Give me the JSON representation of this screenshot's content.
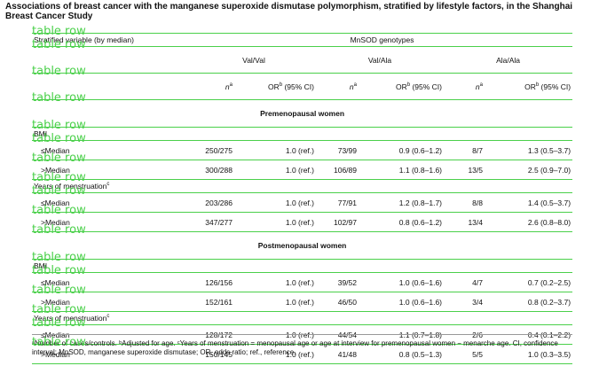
{
  "caption": "Associations of breast cancer with the manganese superoxide dismutase polymorphism, stratified by lifestyle factors, in the Shanghai Breast Cancer Study",
  "watermark": "table row",
  "header": {
    "stratified": "Stratified variable (by median)",
    "genotypes": "MnSOD genotypes",
    "groups": [
      "Val/Val",
      "Val/Ala",
      "Ala/Ala"
    ],
    "n_label": "n",
    "n_sup": "a",
    "or_label": "OR",
    "or_sup": "b",
    "ci_label": " (95% CI)"
  },
  "sections": [
    {
      "title": "Premenopausal women",
      "variables": [
        {
          "label": "BMI",
          "sup": "",
          "rows": [
            {
              "label": "≤Median",
              "cells": [
                "250/275",
                "1.0 (ref.)",
                "73/99",
                "0.9 (0.6–1.2)",
                "8/7",
                "1.3 (0.5–3.7)"
              ]
            },
            {
              "label": ">Median",
              "cells": [
                "300/288",
                "1.0 (ref.)",
                "106/89",
                "1.1 (0.8–1.6)",
                "13/5",
                "2.5 (0.9–7.0)"
              ]
            }
          ]
        },
        {
          "label": "Years of menstruation",
          "sup": "c",
          "rows": [
            {
              "label": "≤Median",
              "cells": [
                "203/286",
                "1.0 (ref.)",
                "77/91",
                "1.2 (0.8–1.7)",
                "8/8",
                "1.4 (0.5–3.7)"
              ]
            },
            {
              "label": ">Median",
              "cells": [
                "347/277",
                "1.0 (ref.)",
                "102/97",
                "0.8 (0.6–1.2)",
                "13/4",
                "2.6 (0.8–8.0)"
              ]
            }
          ]
        }
      ]
    },
    {
      "title": "Postmenopausal women",
      "variables": [
        {
          "label": "BMI",
          "sup": "",
          "rows": [
            {
              "label": "≤Median",
              "cells": [
                "126/156",
                "1.0 (ref.)",
                "39/52",
                "1.0 (0.6–1.6)",
                "4/7",
                "0.7 (0.2–2.5)"
              ]
            },
            {
              "label": ">Median",
              "cells": [
                "152/161",
                "1.0 (ref.)",
                "46/50",
                "1.0 (0.6–1.6)",
                "3/4",
                "0.8 (0.2–3.7)"
              ]
            }
          ]
        },
        {
          "label": "Years of menstruation",
          "sup": "c",
          "rows": [
            {
              "label": "≤Median",
              "cells": [
                "128/172",
                "1.0 (ref.)",
                "44/54",
                "1.1 (0.7–1.8)",
                "2/6",
                "0.4 (0.1–2.2)"
              ]
            },
            {
              "label": ">Median",
              "cells": [
                "150/145",
                "1.0 (ref.)",
                "41/48",
                "0.8 (0.5–1.3)",
                "5/5",
                "1.0 (0.3–3.5)"
              ]
            }
          ]
        }
      ]
    }
  ],
  "footnote": "ᵃNumber of cases/controls. ᵇAdjusted for age. ᶜYears of menstruation = menopausal age or age at interview for premenopausal women − menarche age. CI, confidence interval; MnSOD, manganese superoxide dismutase; OR, odds ratio; ref., reference."
}
